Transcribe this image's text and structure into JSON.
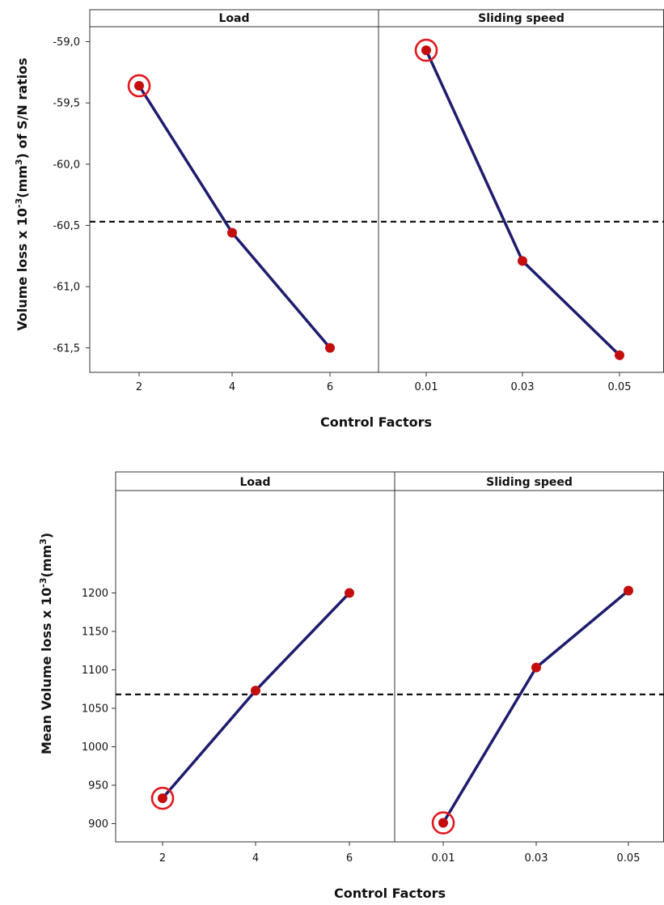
{
  "chart_data": [
    {
      "type": "line",
      "ylabel_parts": [
        "Volume loss x 10",
        "-3",
        "(mm",
        "3",
        ") of S/N ratios"
      ],
      "xlabel": "Control Factors",
      "ylim": [
        -61.72,
        -58.9
      ],
      "yticks": [
        "-59,0",
        "-59,5",
        "-60,0",
        "-60,5",
        "-61,0",
        "-61,5"
      ],
      "ytick_values": [
        -59.0,
        -59.5,
        -60.0,
        -60.5,
        -61.0,
        -61.5
      ],
      "mean": -60.47,
      "panels": [
        {
          "title": "Load",
          "categories": [
            "2",
            "4",
            "6"
          ],
          "values": [
            -59.36,
            -60.56,
            -61.5
          ],
          "highlight_index": 0
        },
        {
          "title": "Sliding speed",
          "categories": [
            "0.01",
            "0.03",
            "0.05"
          ],
          "values": [
            -59.07,
            -60.79,
            -61.56
          ],
          "highlight_index": 0
        }
      ],
      "colors": {
        "line": "#1f1c6e",
        "point": "#c40d0d",
        "ring": "#e0191e"
      }
    },
    {
      "type": "line",
      "ylabel_parts": [
        "Mean Volume loss x 10",
        "-3",
        "(mm",
        "3",
        ")"
      ],
      "xlabel": "Control Factors",
      "ylim": [
        882,
        1222
      ],
      "yticks": [
        "900",
        "950",
        "1000",
        "1050",
        "1100",
        "1150",
        "1200"
      ],
      "ytick_values": [
        900,
        950,
        1000,
        1050,
        1100,
        1150,
        1200
      ],
      "mean": 1068,
      "panels": [
        {
          "title": "Load",
          "categories": [
            "2",
            "4",
            "6"
          ],
          "values": [
            933,
            1073,
            1200
          ],
          "highlight_index": 0
        },
        {
          "title": "Sliding speed",
          "categories": [
            "0.01",
            "0.03",
            "0.05"
          ],
          "values": [
            901,
            1103,
            1203
          ],
          "highlight_index": 0
        }
      ],
      "colors": {
        "line": "#1f1c6e",
        "point": "#c40d0d",
        "ring": "#e0191e"
      }
    }
  ]
}
